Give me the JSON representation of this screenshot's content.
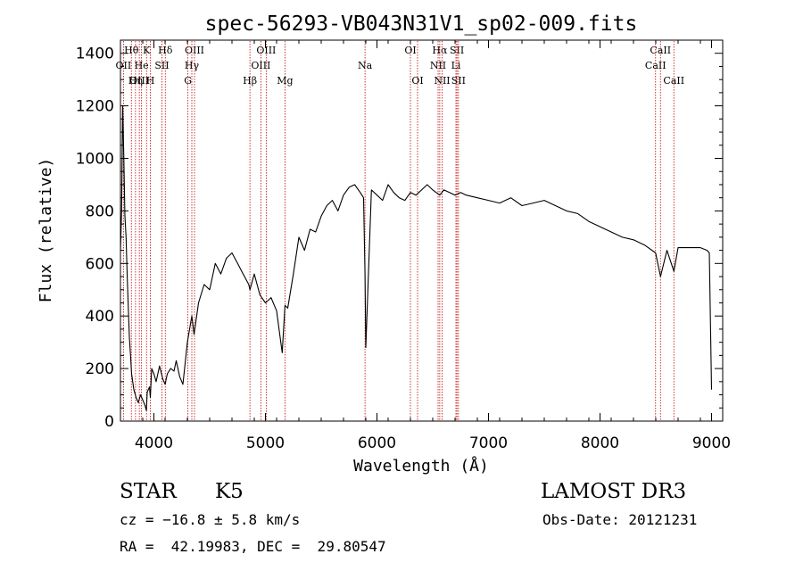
{
  "chart_data": {
    "type": "line",
    "title": "spec-56293-VB043N31V1_sp02-009.fits",
    "xlabel": "Wavelength (Å)",
    "ylabel": "Flux (relative)",
    "xlim": [
      3700,
      9100
    ],
    "ylim": [
      0,
      1450
    ],
    "xticks": [
      4000,
      5000,
      6000,
      7000,
      8000,
      9000
    ],
    "yticks": [
      0,
      200,
      400,
      600,
      800,
      1000,
      1200,
      1400
    ],
    "grid": false,
    "series": [
      {
        "color": "#000000",
        "x": [
          3700,
          3710,
          3720,
          3730,
          3740,
          3750,
          3760,
          3770,
          3780,
          3790,
          3800,
          3820,
          3840,
          3860,
          3880,
          3900,
          3920,
          3933,
          3940,
          3960,
          3968,
          3980,
          4000,
          4020,
          4050,
          4080,
          4101,
          4120,
          4150,
          4180,
          4200,
          4230,
          4260,
          4300,
          4340,
          4360,
          4400,
          4450,
          4500,
          4550,
          4600,
          4650,
          4700,
          4750,
          4800,
          4850,
          4861,
          4900,
          4950,
          5000,
          5050,
          5100,
          5150,
          5175,
          5200,
          5250,
          5300,
          5350,
          5400,
          5450,
          5500,
          5550,
          5600,
          5650,
          5700,
          5750,
          5800,
          5850,
          5880,
          5893,
          5900,
          5950,
          6000,
          6050,
          6100,
          6150,
          6200,
          6250,
          6300,
          6350,
          6400,
          6450,
          6500,
          6563,
          6600,
          6650,
          6700,
          6750,
          6800,
          6900,
          7000,
          7100,
          7200,
          7300,
          7400,
          7500,
          7600,
          7700,
          7800,
          7900,
          8000,
          8100,
          8200,
          8300,
          8400,
          8498,
          8542,
          8600,
          8662,
          8700,
          8800,
          8900,
          8960,
          8980,
          9000
        ],
        "y": [
          650,
          800,
          1200,
          1000,
          780,
          700,
          560,
          430,
          320,
          250,
          180,
          120,
          90,
          70,
          100,
          80,
          60,
          40,
          110,
          130,
          90,
          200,
          180,
          150,
          210,
          160,
          140,
          180,
          200,
          190,
          230,
          170,
          140,
          300,
          400,
          330,
          450,
          520,
          500,
          600,
          560,
          620,
          640,
          600,
          560,
          520,
          500,
          560,
          480,
          450,
          470,
          420,
          260,
          440,
          430,
          560,
          700,
          650,
          730,
          720,
          780,
          820,
          840,
          800,
          860,
          890,
          900,
          870,
          850,
          560,
          280,
          880,
          860,
          840,
          900,
          870,
          850,
          840,
          870,
          860,
          880,
          900,
          880,
          860,
          880,
          870,
          860,
          870,
          860,
          850,
          840,
          830,
          850,
          820,
          830,
          840,
          820,
          800,
          790,
          760,
          740,
          720,
          700,
          690,
          670,
          640,
          550,
          650,
          570,
          660,
          660,
          660,
          650,
          640,
          120
        ]
      }
    ],
    "lines": [
      {
        "label": "Hθ",
        "x": 3798,
        "row": 1
      },
      {
        "label": "OII",
        "x": 3727,
        "row": 2
      },
      {
        "label": "OIII",
        "x": 3869,
        "row": 3
      },
      {
        "label": "K",
        "x": 3934,
        "row": 1
      },
      {
        "label": "He",
        "x": 3889,
        "row": 2
      },
      {
        "label": "Hη",
        "x": 3835,
        "row": 3
      },
      {
        "label": "SII",
        "x": 4072,
        "row": 2
      },
      {
        "label": "Hδ",
        "x": 4102,
        "row": 1
      },
      {
        "label": "H",
        "x": 3968,
        "row": 3
      },
      {
        "label": "OIII",
        "x": 4364,
        "row": 1
      },
      {
        "label": "Hγ",
        "x": 4340,
        "row": 2
      },
      {
        "label": "G",
        "x": 4305,
        "row": 3
      },
      {
        "label": "Hβ",
        "x": 4861,
        "row": 3
      },
      {
        "label": "OIII",
        "x": 5007,
        "row": 1
      },
      {
        "label": "OIII",
        "x": 4959,
        "row": 2
      },
      {
        "label": "Mg",
        "x": 5175,
        "row": 3
      },
      {
        "label": "Na",
        "x": 5893,
        "row": 2
      },
      {
        "label": "OI",
        "x": 6300,
        "row": 1
      },
      {
        "label": "OI",
        "x": 6364,
        "row": 3
      },
      {
        "label": "Hα",
        "x": 6563,
        "row": 1
      },
      {
        "label": "NII",
        "x": 6548,
        "row": 2
      },
      {
        "label": "NII",
        "x": 6584,
        "row": 3
      },
      {
        "label": "SII",
        "x": 6717,
        "row": 1
      },
      {
        "label": "Li",
        "x": 6708,
        "row": 2
      },
      {
        "label": "SII",
        "x": 6731,
        "row": 3
      },
      {
        "label": "CaII",
        "x": 8542,
        "row": 1
      },
      {
        "label": "CaII",
        "x": 8498,
        "row": 2
      },
      {
        "label": "CaII",
        "x": 8662,
        "row": 3
      }
    ],
    "line_color": "#c00000"
  },
  "info": {
    "class": "STAR",
    "subclass": "K5",
    "survey": "LAMOST DR3",
    "cz": "cz = −16.8 ± 5.8 km/s",
    "obs_date": "Obs-Date: 20121231",
    "radec": "RA =  42.19983, DEC =  29.80547"
  }
}
